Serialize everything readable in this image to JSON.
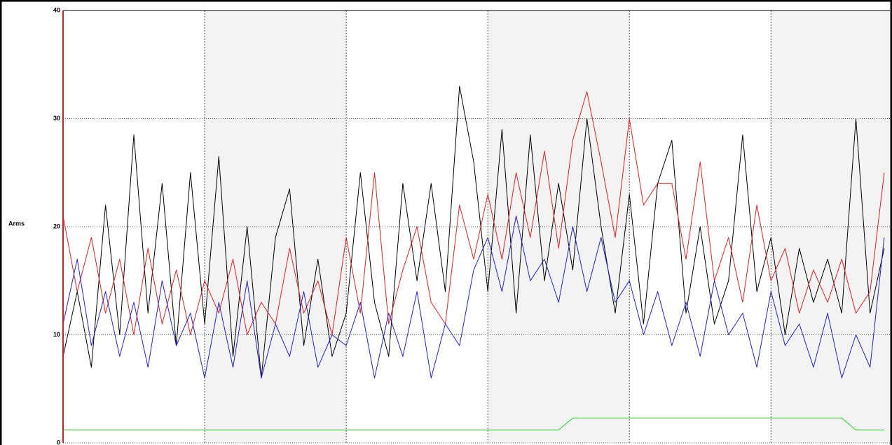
{
  "chart_data": {
    "type": "line",
    "y_label": "Arms",
    "x": [
      0.0,
      0.1,
      0.2,
      0.3,
      0.4,
      0.5,
      0.6,
      0.7,
      0.8,
      0.9,
      1.0,
      1.1,
      1.2,
      1.3,
      1.4,
      1.5,
      1.6,
      1.7,
      1.8,
      1.9,
      2.0,
      2.1,
      2.2,
      2.3,
      2.4,
      2.5,
      2.6,
      2.7,
      2.8,
      2.9,
      3.0,
      3.1,
      3.2,
      3.3,
      3.4,
      3.5,
      3.6,
      3.7,
      3.8,
      3.9,
      4.0,
      4.1,
      4.2,
      4.3,
      4.4,
      4.5,
      4.6,
      4.7,
      4.8,
      4.9,
      5.0,
      5.1,
      5.2,
      5.3,
      5.4,
      5.5,
      5.6,
      5.7,
      5.8
    ],
    "series": [
      {
        "name": "black",
        "color": "#000000",
        "values": [
          8,
          14,
          7,
          22,
          10,
          28.5,
          12,
          24,
          9,
          25,
          11,
          26.5,
          8,
          20,
          6,
          19,
          23.5,
          9,
          17,
          8,
          12,
          25,
          13,
          8,
          24,
          15,
          24,
          14,
          33,
          26,
          14,
          29,
          12,
          28.5,
          15,
          24,
          16,
          30,
          20,
          12,
          23,
          11,
          24,
          28,
          12,
          20,
          11,
          15,
          28.5,
          14,
          19,
          10,
          18,
          13,
          17,
          12,
          30,
          12,
          18
        ]
      },
      {
        "name": "red",
        "color": "#e02020",
        "values": [
          21,
          14,
          19,
          12,
          17,
          10,
          18,
          11,
          16,
          10,
          15,
          12,
          17,
          10,
          13,
          11,
          18,
          12,
          15,
          10,
          19,
          12,
          25,
          11,
          16,
          20,
          13,
          11,
          22,
          17,
          23,
          17,
          25,
          19,
          27,
          18,
          28,
          32.5,
          26,
          19,
          30,
          22,
          24,
          24,
          17,
          26,
          15,
          19,
          13,
          22,
          15,
          18,
          12,
          16,
          13,
          17,
          12,
          14,
          25
        ]
      },
      {
        "name": "blue",
        "color": "#2020d0",
        "values": [
          11,
          17,
          9,
          14,
          8,
          13,
          7,
          15,
          9,
          12,
          6,
          13,
          7,
          15,
          6,
          11,
          8,
          14,
          7,
          10,
          9,
          13,
          6,
          12,
          8,
          14,
          6,
          11,
          9,
          16,
          19,
          14,
          21,
          15,
          17,
          13,
          20,
          14,
          19,
          13,
          15,
          10,
          14,
          9,
          13,
          8,
          15,
          10,
          12,
          7,
          14,
          9,
          11,
          7,
          12,
          6,
          10,
          7,
          19
        ]
      },
      {
        "name": "green",
        "color": "#20d020",
        "values": [
          1.2,
          1.2,
          1.2,
          1.2,
          1.2,
          1.2,
          1.2,
          1.2,
          1.2,
          1.2,
          1.2,
          1.2,
          1.2,
          1.2,
          1.2,
          1.2,
          1.2,
          1.2,
          1.2,
          1.2,
          1.2,
          1.2,
          1.2,
          1.2,
          1.2,
          1.2,
          1.2,
          1.2,
          1.2,
          1.2,
          1.2,
          1.2,
          1.2,
          1.2,
          1.2,
          1.2,
          2.3,
          2.3,
          2.3,
          2.3,
          2.3,
          2.3,
          2.3,
          2.3,
          2.3,
          2.3,
          2.3,
          2.3,
          2.3,
          2.3,
          2.3,
          2.3,
          2.3,
          2.3,
          2.3,
          2.3,
          1.2,
          1.2,
          1.2
        ]
      }
    ],
    "xlim": [
      0,
      5.84
    ],
    "xticks": [
      1,
      2,
      3,
      4,
      5
    ],
    "ylim": [
      0,
      40
    ],
    "yticks": [
      0,
      10,
      20,
      30,
      40
    ],
    "grid": true
  }
}
